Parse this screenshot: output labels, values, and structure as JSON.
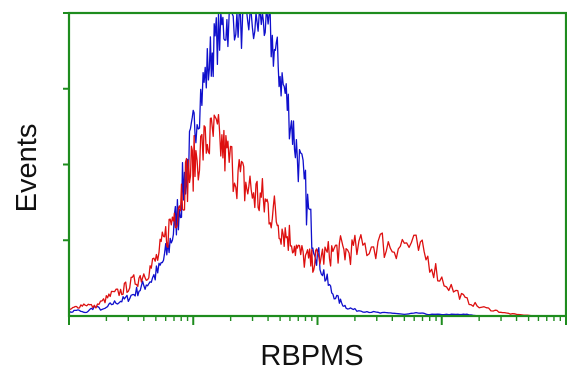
{
  "chart_data": {
    "type": "line",
    "title": "",
    "xlabel": "RBPMS",
    "ylabel": "Events",
    "x_scale": "log",
    "xlim": [
      1,
      10000
    ],
    "ylim": [
      0,
      100
    ],
    "grid": false,
    "axis_color": "#1e8c1e",
    "series": [
      {
        "color": "#1010cc",
        "x": [
          1.0,
          1.15,
          1.35,
          1.6,
          1.9,
          2.2,
          2.6,
          3.0,
          3.5,
          4.0,
          4.6,
          5.3,
          6.0,
          6.8,
          7.6,
          8.5,
          9.5,
          10.5,
          12.0,
          13.5,
          15.0,
          17.0,
          19.0,
          22.0,
          25.0,
          28.0,
          32.0,
          36.0,
          40.0,
          45.0,
          50.0,
          56.0,
          63.0,
          70.0,
          80.0,
          90.0,
          100.0,
          115.0,
          130.0,
          150.0,
          170.0,
          200.0,
          250.0,
          320.0,
          400.0,
          500.0,
          650.0,
          800.0,
          1000.0,
          1300.0,
          1600.0,
          2000.0,
          2600.0,
          3200.0,
          4000.0,
          6000.0,
          10000.0
        ],
        "y": [
          1,
          2,
          1,
          3,
          2,
          4,
          5,
          6,
          8,
          10,
          12,
          15,
          20,
          27,
          35,
          45,
          55,
          66,
          76,
          84,
          90,
          95,
          97,
          100,
          96,
          99,
          95,
          100,
          94,
          88,
          80,
          72,
          62,
          52,
          40,
          28,
          20,
          13,
          8,
          5,
          3,
          2,
          1.5,
          1,
          1,
          0.5,
          1,
          0.5,
          0.5,
          0.5,
          0.5,
          0,
          0,
          0,
          0,
          0,
          0
        ]
      },
      {
        "color": "#dd1010",
        "x": [
          1.0,
          1.15,
          1.35,
          1.6,
          1.9,
          2.2,
          2.6,
          3.0,
          3.5,
          4.0,
          4.6,
          5.3,
          6.0,
          6.8,
          7.6,
          8.5,
          9.5,
          10.5,
          12.0,
          13.5,
          15.0,
          17.0,
          19.0,
          22.0,
          25.0,
          28.0,
          32.0,
          36.0,
          40.0,
          45.0,
          50.0,
          56.0,
          63.0,
          70.0,
          80.0,
          90.0,
          100.0,
          115.0,
          130.0,
          150.0,
          170.0,
          200.0,
          250.0,
          320.0,
          400.0,
          500.0,
          650.0,
          800.0,
          1000.0,
          1300.0,
          1600.0,
          2000.0,
          2600.0,
          3200.0,
          4000.0,
          6000.0,
          10000.0
        ],
        "y": [
          2,
          3,
          4,
          3,
          5,
          7,
          8,
          10,
          12,
          14,
          16,
          20,
          26,
          32,
          38,
          44,
          48,
          52,
          56,
          58,
          60,
          56,
          52,
          48,
          44,
          42,
          40,
          38,
          36,
          34,
          30,
          27,
          25,
          21,
          19,
          18,
          19,
          20,
          21,
          22,
          21,
          22,
          23,
          24,
          23,
          24,
          22,
          18,
          12,
          8,
          5,
          3,
          2,
          1,
          0.5,
          0,
          0
        ]
      }
    ]
  }
}
